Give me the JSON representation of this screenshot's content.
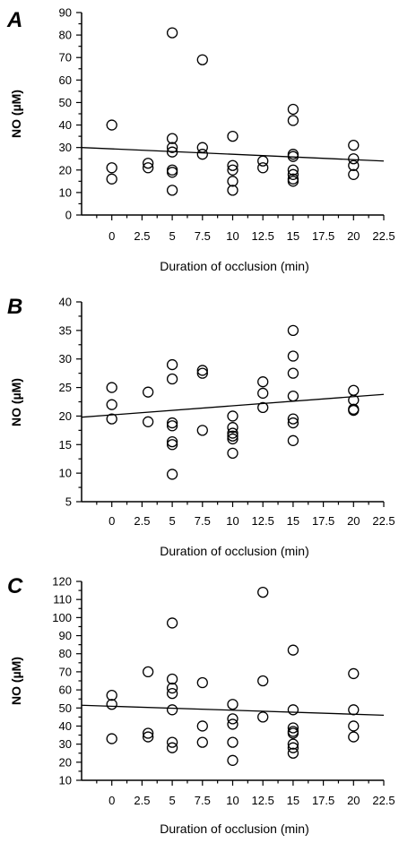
{
  "chart_data": [
    {
      "type": "scatter",
      "panel_label": "A",
      "xlabel": "Duration of occlusion (min)",
      "ylabel": "NO (µM)",
      "xlim": [
        -2.5,
        22.5
      ],
      "ylim": [
        0,
        90
      ],
      "xticks": [
        "0",
        "2.5",
        "5",
        "7.5",
        "10",
        "12.5",
        "15",
        "17.5",
        "20",
        "22.5"
      ],
      "yticks": [
        "0",
        "10",
        "20",
        "30",
        "40",
        "50",
        "60",
        "70",
        "80",
        "90"
      ],
      "points": [
        [
          0,
          40
        ],
        [
          0,
          21
        ],
        [
          0,
          16
        ],
        [
          3,
          23
        ],
        [
          3,
          21
        ],
        [
          5,
          81
        ],
        [
          5,
          34
        ],
        [
          5,
          30
        ],
        [
          5,
          28
        ],
        [
          5,
          20
        ],
        [
          5,
          19
        ],
        [
          5,
          11
        ],
        [
          7.5,
          69
        ],
        [
          7.5,
          30
        ],
        [
          7.5,
          27
        ],
        [
          10,
          35
        ],
        [
          10,
          22
        ],
        [
          10,
          20
        ],
        [
          10,
          15
        ],
        [
          10,
          11
        ],
        [
          12.5,
          24
        ],
        [
          12.5,
          21
        ],
        [
          15,
          47
        ],
        [
          15,
          42
        ],
        [
          15,
          27
        ],
        [
          15,
          26
        ],
        [
          15,
          20
        ],
        [
          15,
          18
        ],
        [
          15,
          16
        ],
        [
          15,
          15
        ],
        [
          20,
          31
        ],
        [
          20,
          25
        ],
        [
          20,
          22
        ],
        [
          20,
          18
        ]
      ],
      "trend": {
        "x": [
          -2.5,
          22.5
        ],
        "y": [
          30,
          24
        ]
      },
      "grid": false
    },
    {
      "type": "scatter",
      "panel_label": "B",
      "xlabel": "Duration of occlusion (min)",
      "ylabel": "NO (µM)",
      "xlim": [
        -2.5,
        22.5
      ],
      "ylim": [
        5,
        40
      ],
      "xticks": [
        "0",
        "2.5",
        "5",
        "7.5",
        "10",
        "12.5",
        "15",
        "17.5",
        "20",
        "22.5"
      ],
      "yticks": [
        "5",
        "10",
        "15",
        "20",
        "25",
        "30",
        "35",
        "40"
      ],
      "points": [
        [
          0,
          25
        ],
        [
          0,
          22
        ],
        [
          0,
          19.5
        ],
        [
          3,
          24.2
        ],
        [
          3,
          19
        ],
        [
          5,
          29
        ],
        [
          5,
          26.5
        ],
        [
          5,
          18.8
        ],
        [
          5,
          18.3
        ],
        [
          5,
          15.5
        ],
        [
          5,
          15
        ],
        [
          5,
          9.8
        ],
        [
          7.5,
          28
        ],
        [
          7.5,
          27.5
        ],
        [
          7.5,
          17.5
        ],
        [
          10,
          20
        ],
        [
          10,
          18
        ],
        [
          10,
          17
        ],
        [
          10,
          16.5
        ],
        [
          10,
          16
        ],
        [
          10,
          13.5
        ],
        [
          12.5,
          26
        ],
        [
          12.5,
          24
        ],
        [
          12.5,
          21.5
        ],
        [
          15,
          35
        ],
        [
          15,
          30.5
        ],
        [
          15,
          27.5
        ],
        [
          15,
          23.5
        ],
        [
          15,
          19.5
        ],
        [
          15,
          18.8
        ],
        [
          15,
          15.7
        ],
        [
          20,
          24.5
        ],
        [
          20,
          22.8
        ],
        [
          20,
          21.2
        ],
        [
          20,
          21
        ]
      ],
      "trend": {
        "x": [
          -2.5,
          22.5
        ],
        "y": [
          19.8,
          23.8
        ]
      },
      "grid": false
    },
    {
      "type": "scatter",
      "panel_label": "C",
      "xlabel": "Duration of occlusion (min)",
      "ylabel": "NO (µM)",
      "xlim": [
        -2.5,
        22.5
      ],
      "ylim": [
        10,
        120
      ],
      "xticks": [
        "0",
        "2.5",
        "5",
        "7.5",
        "10",
        "12.5",
        "15",
        "17.5",
        "20",
        "22.5"
      ],
      "yticks": [
        "10",
        "20",
        "30",
        "40",
        "50",
        "60",
        "70",
        "80",
        "90",
        "100",
        "110",
        "120"
      ],
      "points": [
        [
          0,
          57
        ],
        [
          0,
          52
        ],
        [
          0,
          33
        ],
        [
          3,
          70
        ],
        [
          3,
          36
        ],
        [
          3,
          34
        ],
        [
          5,
          97
        ],
        [
          5,
          66
        ],
        [
          5,
          61
        ],
        [
          5,
          58
        ],
        [
          5,
          49
        ],
        [
          5,
          31
        ],
        [
          5,
          28
        ],
        [
          7.5,
          64
        ],
        [
          7.5,
          40
        ],
        [
          7.5,
          31
        ],
        [
          10,
          52
        ],
        [
          10,
          44
        ],
        [
          10,
          41
        ],
        [
          10,
          31
        ],
        [
          10,
          21
        ],
        [
          12.5,
          114
        ],
        [
          12.5,
          65
        ],
        [
          12.5,
          45
        ],
        [
          15,
          82
        ],
        [
          15,
          49
        ],
        [
          15,
          39
        ],
        [
          15,
          37
        ],
        [
          15,
          36
        ],
        [
          15,
          30
        ],
        [
          15,
          28
        ],
        [
          15,
          25
        ],
        [
          20,
          69
        ],
        [
          20,
          49
        ],
        [
          20,
          40
        ],
        [
          20,
          34
        ]
      ],
      "trend": {
        "x": [
          -2.5,
          22.5
        ],
        "y": [
          51.5,
          46
        ]
      },
      "grid": false
    }
  ]
}
